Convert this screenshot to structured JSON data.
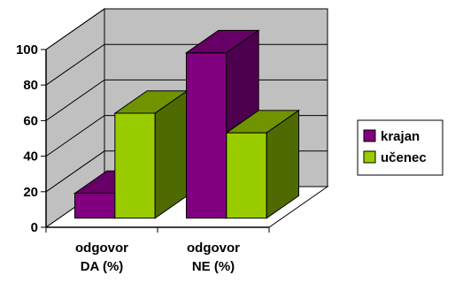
{
  "chart_data": {
    "type": "bar",
    "three_d": true,
    "categories": [
      [
        "odgovor",
        "DA (%)"
      ],
      [
        "odgovor",
        "NE (%)"
      ]
    ],
    "series": [
      {
        "name": "krajan",
        "color": "#800080",
        "side_color": "#4d004d",
        "top_color": "#660066",
        "values": [
          14,
          93
        ]
      },
      {
        "name": "učenec",
        "color": "#99cc00",
        "side_color": "#4f6a00",
        "top_color": "#6f9400",
        "values": [
          59,
          48
        ]
      }
    ],
    "yticks": [
      "0",
      "20",
      "40",
      "60",
      "80",
      "100"
    ],
    "ylim": [
      0,
      100
    ],
    "legend_position": "right",
    "wall_color": "#c0c0c0",
    "grid": true
  }
}
